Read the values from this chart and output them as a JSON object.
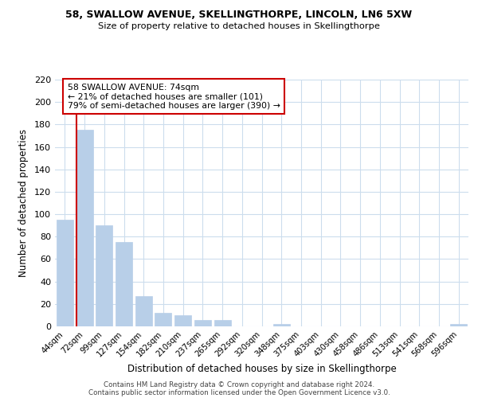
{
  "title1": "58, SWALLOW AVENUE, SKELLINGTHORPE, LINCOLN, LN6 5XW",
  "title2": "Size of property relative to detached houses in Skellingthorpe",
  "xlabel": "Distribution of detached houses by size in Skellingthorpe",
  "ylabel": "Number of detached properties",
  "bar_labels": [
    "44sqm",
    "72sqm",
    "99sqm",
    "127sqm",
    "154sqm",
    "182sqm",
    "210sqm",
    "237sqm",
    "265sqm",
    "292sqm",
    "320sqm",
    "348sqm",
    "375sqm",
    "403sqm",
    "430sqm",
    "458sqm",
    "486sqm",
    "513sqm",
    "541sqm",
    "568sqm",
    "596sqm"
  ],
  "bar_values": [
    95,
    175,
    90,
    75,
    27,
    12,
    10,
    6,
    6,
    0,
    0,
    2,
    0,
    0,
    0,
    0,
    0,
    0,
    0,
    0,
    2
  ],
  "bar_color": "#b8cfe8",
  "bar_edge_color": "#b8cfe8",
  "highlight_line_color": "#cc0000",
  "annotation_title": "58 SWALLOW AVENUE: 74sqm",
  "annotation_line1": "← 21% of detached houses are smaller (101)",
  "annotation_line2": "79% of semi-detached houses are larger (390) →",
  "annotation_box_color": "#ffffff",
  "annotation_box_edge": "#cc0000",
  "ylim": [
    0,
    220
  ],
  "yticks": [
    0,
    20,
    40,
    60,
    80,
    100,
    120,
    140,
    160,
    180,
    200,
    220
  ],
  "footer1": "Contains HM Land Registry data © Crown copyright and database right 2024.",
  "footer2": "Contains public sector information licensed under the Open Government Licence v3.0.",
  "bg_color": "#ffffff",
  "grid_color": "#ccdded"
}
